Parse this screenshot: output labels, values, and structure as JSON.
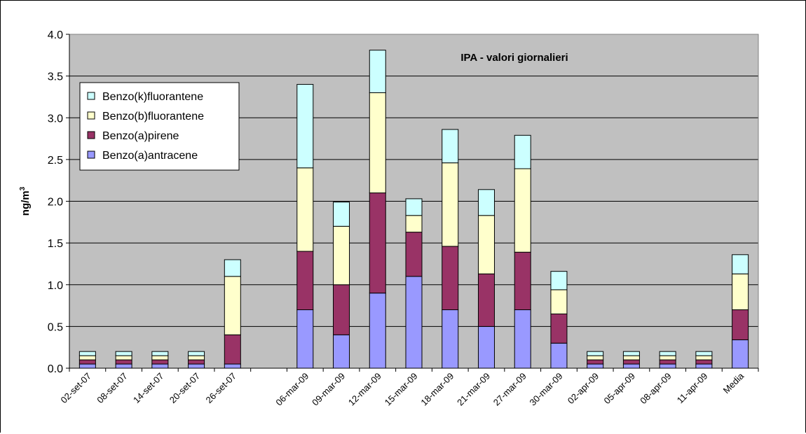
{
  "chart_data": {
    "type": "bar",
    "stacked": true,
    "title": "IPA - valori giornalieri",
    "xlabel": "",
    "ylabel": "ng/m",
    "ylabel_superscript": "3",
    "ylim": [
      0,
      4.0
    ],
    "ytick_step": 0.5,
    "ytick_labels": [
      "0.0",
      "0.5",
      "1.0",
      "1.5",
      "2.0",
      "2.5",
      "3.0",
      "3.5",
      "4.0"
    ],
    "grid": true,
    "plot_background": "#c0c0c0",
    "legend_position": "top-left",
    "slots": [
      "02-set-07",
      "08-set-07",
      "14-set-07",
      "20-set-07",
      "26-set-07",
      "",
      "06-mar-09",
      "09-mar-09",
      "12-mar-09",
      "15-mar-09",
      "18-mar-09",
      "21-mar-09",
      "27-mar-09",
      "30-mar-09",
      "02-apr-09",
      "05-apr-09",
      "08-apr-09",
      "11-apr-09",
      "Media"
    ],
    "categories": [
      "02-set-07",
      "08-set-07",
      "14-set-07",
      "20-set-07",
      "26-set-07",
      "06-mar-09",
      "09-mar-09",
      "12-mar-09",
      "15-mar-09",
      "18-mar-09",
      "21-mar-09",
      "27-mar-09",
      "30-mar-09",
      "02-apr-09",
      "05-apr-09",
      "08-apr-09",
      "11-apr-09",
      "Media"
    ],
    "series": [
      {
        "name": "Benzo(a)antracene",
        "color": "#9999ff",
        "values": [
          0.05,
          0.05,
          0.05,
          0.05,
          0.05,
          0.7,
          0.4,
          0.9,
          1.1,
          0.7,
          0.5,
          0.7,
          0.3,
          0.05,
          0.05,
          0.05,
          0.05,
          0.34
        ]
      },
      {
        "name": "Benzo(a)pirene",
        "color": "#993366",
        "values": [
          0.05,
          0.05,
          0.05,
          0.05,
          0.35,
          0.7,
          0.6,
          1.2,
          0.53,
          0.76,
          0.63,
          0.69,
          0.35,
          0.05,
          0.05,
          0.05,
          0.05,
          0.36
        ]
      },
      {
        "name": "Benzo(b)fluorantene",
        "color": "#ffffcc",
        "values": [
          0.05,
          0.05,
          0.05,
          0.05,
          0.7,
          1.0,
          0.7,
          1.2,
          0.2,
          1.0,
          0.7,
          1.0,
          0.29,
          0.05,
          0.05,
          0.05,
          0.05,
          0.43
        ]
      },
      {
        "name": "Benzo(k)fluorantene",
        "color": "#ccffff",
        "values": [
          0.05,
          0.05,
          0.05,
          0.05,
          0.2,
          1.0,
          0.29,
          0.51,
          0.2,
          0.4,
          0.31,
          0.4,
          0.22,
          0.05,
          0.05,
          0.05,
          0.05,
          0.23
        ]
      }
    ]
  }
}
